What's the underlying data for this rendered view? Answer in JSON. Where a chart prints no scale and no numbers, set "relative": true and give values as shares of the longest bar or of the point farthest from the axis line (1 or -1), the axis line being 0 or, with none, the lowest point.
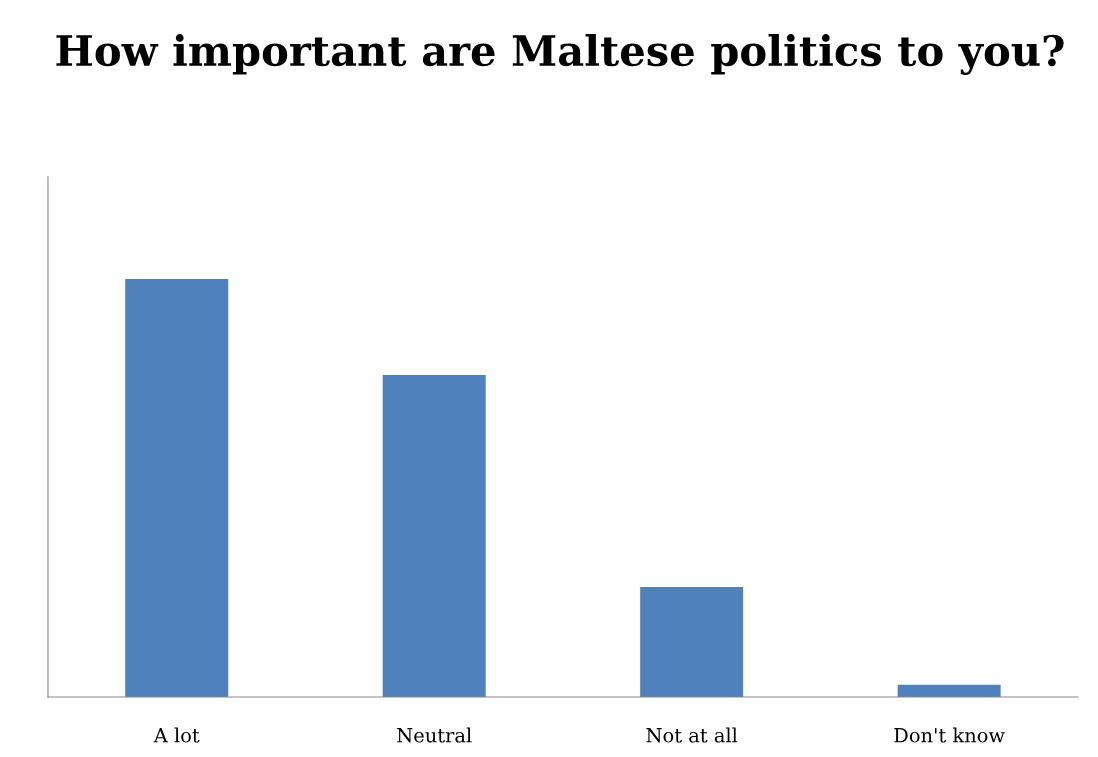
{
  "chart_data": {
    "type": "bar",
    "title": "How important are Maltese politics to you?",
    "categories": [
      "A lot",
      "Neutral",
      "Not at all",
      "Don't know"
    ],
    "values": [
      1,
      0.77,
      0.263,
      0.029
    ],
    "color": "#4f81bd",
    "relative": true,
    "grid": false,
    "legend": false
  }
}
